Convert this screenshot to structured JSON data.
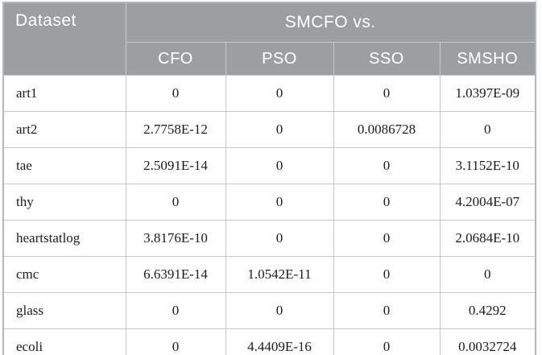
{
  "table": {
    "corner_header": "Dataset",
    "group_header": "SMCFO vs.",
    "columns": [
      "CFO",
      "PSO",
      "SSO",
      "SMSHO"
    ],
    "rows": [
      {
        "dataset": "art1",
        "values": [
          "0",
          "0",
          "0",
          "1.0397E-09"
        ]
      },
      {
        "dataset": "art2",
        "values": [
          "2.7758E-12",
          "0",
          "0.0086728",
          "0"
        ]
      },
      {
        "dataset": "tae",
        "values": [
          "2.5091E-14",
          "0",
          "0",
          "3.1152E-10"
        ]
      },
      {
        "dataset": "thy",
        "values": [
          "0",
          "0",
          "0",
          "4.2004E-07"
        ]
      },
      {
        "dataset": "heartstatlog",
        "values": [
          "3.8176E-10",
          "0",
          "0",
          "2.0684E-10"
        ]
      },
      {
        "dataset": "cmc",
        "values": [
          "6.6391E-14",
          "1.0542E-11",
          "0",
          "0"
        ]
      },
      {
        "dataset": "glass",
        "values": [
          "0",
          "0",
          "0",
          "0.4292"
        ]
      },
      {
        "dataset": "ecoli",
        "values": [
          "0",
          "4.4409E-16",
          "0",
          "0.0032724"
        ]
      }
    ],
    "colors": {
      "header_bg": "#9b9fa1",
      "header_text": "#ffffff",
      "header_divider": "#c7cacb",
      "body_border": "#c5c8c8",
      "outer_border": "#b4b7b8",
      "body_text": "#1c1c1c"
    }
  }
}
